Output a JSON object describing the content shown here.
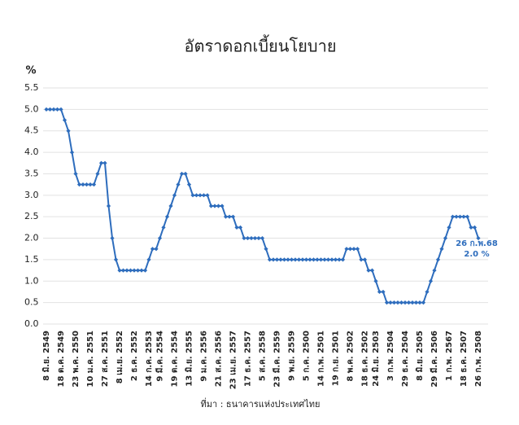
{
  "chart_data": {
    "type": "line",
    "title": "อัตราดอกเบี้ยนโยบาย",
    "y_label": "%",
    "categories": [
      "8 มิ.ย. 2549",
      null,
      null,
      null,
      "18 ต.ค. 2549",
      null,
      null,
      null,
      "23 พ.ค. 2550",
      null,
      null,
      null,
      "10 ม.ค. 2551",
      null,
      null,
      null,
      "27 ส.ค. 2551",
      null,
      null,
      null,
      "8 เม.ย. 2552",
      null,
      null,
      null,
      "2 ธ.ค. 2552",
      null,
      null,
      null,
      "14 ก.ค. 2553",
      null,
      null,
      "9 มี.ค. 2554",
      null,
      null,
      null,
      "19 ต.ค. 2554",
      null,
      null,
      null,
      "13 มิ.ย. 2555",
      null,
      null,
      null,
      "9 ม.ค. 2556",
      null,
      null,
      null,
      "21 ส.ค. 2556",
      null,
      null,
      null,
      "23 เม.ย. 2557",
      null,
      null,
      null,
      "17 ธ.ค. 2557",
      null,
      null,
      null,
      "5 ส.ค. 2558",
      null,
      null,
      null,
      "23 มี.ค. 2559",
      null,
      null,
      null,
      "9 พ.ย. 2559",
      null,
      null,
      null,
      "5 ก.ค. 2500",
      null,
      null,
      null,
      "14 ก.พ. 2501",
      null,
      null,
      null,
      "19 ก.ย. 2501",
      null,
      null,
      null,
      "8 พ.ค. 2502",
      null,
      null,
      null,
      "18 ธ.ค. 2502",
      null,
      null,
      "24 มิ.ย. 2503",
      null,
      null,
      null,
      "3 ก.พ. 2504",
      null,
      null,
      null,
      "29 ธ.ค. 2504",
      null,
      null,
      null,
      "8 มิ.ย. 2505",
      null,
      null,
      null,
      "29 มี.ค. 2506",
      null,
      null,
      null,
      "1 ก.พ. 2567",
      null,
      null,
      null,
      "18 ธ.ค. 2507",
      null,
      null,
      null,
      "26 ก.พ. 2508"
    ],
    "series": [
      {
        "color": "#2e6dbd",
        "values": [
          5.0,
          5.0,
          5.0,
          5.0,
          5.0,
          4.75,
          4.5,
          4.0,
          3.5,
          3.25,
          3.25,
          3.25,
          3.25,
          3.25,
          3.5,
          3.75,
          3.75,
          2.75,
          2.0,
          1.5,
          1.25,
          1.25,
          1.25,
          1.25,
          1.25,
          1.25,
          1.25,
          1.25,
          1.5,
          1.75,
          1.75,
          2.0,
          2.25,
          2.5,
          2.75,
          3.0,
          3.25,
          3.5,
          3.5,
          3.25,
          3.0,
          3.0,
          3.0,
          3.0,
          3.0,
          2.75,
          2.75,
          2.75,
          2.75,
          2.5,
          2.5,
          2.5,
          2.25,
          2.25,
          2.0,
          2.0,
          2.0,
          2.0,
          2.0,
          2.0,
          1.75,
          1.5,
          1.5,
          1.5,
          1.5,
          1.5,
          1.5,
          1.5,
          1.5,
          1.5,
          1.5,
          1.5,
          1.5,
          1.5,
          1.5,
          1.5,
          1.5,
          1.5,
          1.5,
          1.5,
          1.5,
          1.5,
          1.75,
          1.75,
          1.75,
          1.75,
          1.5,
          1.5,
          1.25,
          1.25,
          1.0,
          0.75,
          0.75,
          0.5,
          0.5,
          0.5,
          0.5,
          0.5,
          0.5,
          0.5,
          0.5,
          0.5,
          0.5,
          0.5,
          0.75,
          1.0,
          1.25,
          1.5,
          1.75,
          2.0,
          2.25,
          2.5,
          2.5,
          2.5,
          2.5,
          2.5,
          2.25,
          2.25,
          2.0
        ]
      }
    ],
    "ylim": [
      0,
      5.5
    ],
    "yticks": [
      {
        "value": 0,
        "label": "0.0"
      },
      0.5,
      {
        "value": 1,
        "label": "1.0"
      },
      1.5,
      {
        "value": 2,
        "label": "2.0"
      },
      2.5,
      {
        "value": 3,
        "label": "3.0"
      },
      3.5,
      {
        "value": 4,
        "label": "4.0"
      },
      4.5,
      {
        "value": 5,
        "label": "5.0"
      },
      5.5
    ],
    "grid": true,
    "annotations": [
      "26 ก.พ.68",
      "2.0 %"
    ],
    "source": "ที่มา : ธนาคารแห่งประเทศไทย"
  }
}
